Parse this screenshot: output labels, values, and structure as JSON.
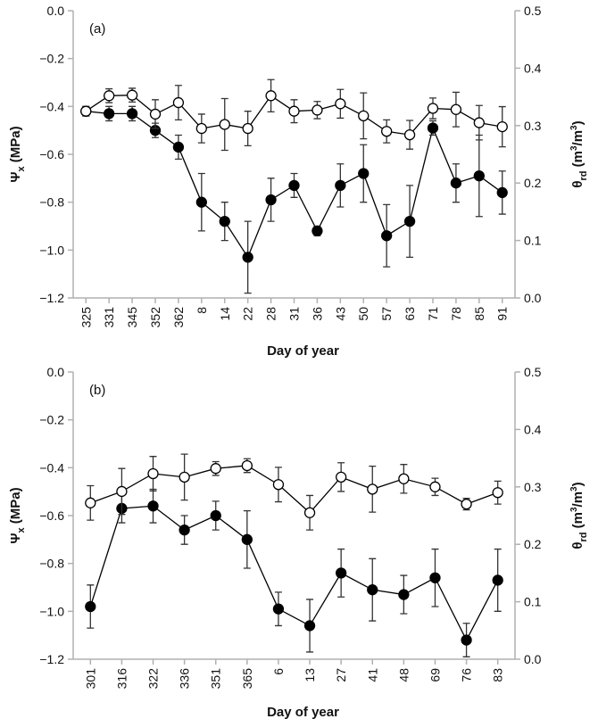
{
  "colors": {
    "axis": "#b0b0b0",
    "tick_label": "#111111",
    "series_line": "#000000",
    "filled": "#000000",
    "open": "#ffffff",
    "errorbar": "#333333"
  },
  "chart_data": [
    {
      "type": "line",
      "panel_label": "(a)",
      "xlabel": "Day of year",
      "ylabel_left": "Ψx (MPa)",
      "ylabel_right": "θrd (m3/m3)",
      "categories": [
        "325",
        "331",
        "345",
        "352",
        "362",
        "8",
        "14",
        "22",
        "28",
        "31",
        "36",
        "43",
        "50",
        "57",
        "63",
        "71",
        "78",
        "85",
        "91"
      ],
      "ylim_left": [
        -1.2,
        0.0
      ],
      "yticks_left": [
        "0.0",
        "-0.2",
        "-0.4",
        "-0.6",
        "-0.8",
        "-1.0",
        "-1.2"
      ],
      "ylim_right": [
        0.0,
        0.5
      ],
      "yticks_right": [
        "0.5",
        "0.4",
        "0.3",
        "0.2",
        "0.1",
        "0.0"
      ],
      "series": [
        {
          "marker": "filled",
          "axis": "left",
          "values": [
            -0.42,
            -0.43,
            -0.43,
            -0.5,
            -0.57,
            -0.8,
            -0.88,
            -1.03,
            -0.79,
            -0.73,
            -0.92,
            -0.73,
            -0.68,
            -0.94,
            -0.88,
            -0.49,
            -0.72,
            -0.69,
            -0.76
          ],
          "errors": [
            0.02,
            0.03,
            0.03,
            0.03,
            0.05,
            0.12,
            0.08,
            0.15,
            0.09,
            0.05,
            0.02,
            0.09,
            0.12,
            0.13,
            0.15,
            0.03,
            0.08,
            0.17,
            0.09
          ]
        },
        {
          "marker": "open",
          "axis": "right",
          "values": [
            0.325,
            0.352,
            0.353,
            0.32,
            0.34,
            0.295,
            0.302,
            0.295,
            0.352,
            0.325,
            0.327,
            0.338,
            0.317,
            0.29,
            0.284,
            0.33,
            0.328,
            0.305,
            0.298
          ],
          "errors": [
            0.008,
            0.012,
            0.012,
            0.025,
            0.03,
            0.025,
            0.045,
            0.03,
            0.028,
            0.02,
            0.015,
            0.025,
            0.04,
            0.02,
            0.025,
            0.018,
            0.03,
            0.03,
            0.035
          ]
        }
      ]
    },
    {
      "type": "line",
      "panel_label": "(b)",
      "xlabel": "Day of year",
      "ylabel_left": "Ψx (MPa)",
      "ylabel_right": "θrd (m3/m3)",
      "categories": [
        "301",
        "316",
        "322",
        "336",
        "351",
        "365",
        "6",
        "13",
        "27",
        "41",
        "48",
        "69",
        "76",
        "83"
      ],
      "ylim_left": [
        -1.2,
        0.0
      ],
      "yticks_left": [
        "0.0",
        "-0.2",
        "-0.4",
        "-0.6",
        "-0.8",
        "-1.0",
        "-1.2"
      ],
      "ylim_right": [
        0.0,
        0.5
      ],
      "yticks_right": [
        "0.5",
        "0.4",
        "0.3",
        "0.2",
        "0.1",
        "0.0"
      ],
      "series": [
        {
          "marker": "filled",
          "axis": "left",
          "values": [
            -0.98,
            -0.57,
            -0.56,
            -0.66,
            -0.6,
            -0.7,
            -0.99,
            -1.06,
            -0.84,
            -0.91,
            -0.93,
            -0.86,
            -1.12,
            -0.87
          ],
          "errors": [
            0.09,
            0.06,
            0.07,
            0.06,
            0.06,
            0.12,
            0.07,
            0.11,
            0.1,
            0.13,
            0.08,
            0.12,
            0.07,
            0.13
          ]
        },
        {
          "marker": "open",
          "axis": "right",
          "values": [
            0.272,
            0.292,
            0.323,
            0.317,
            0.332,
            0.337,
            0.304,
            0.255,
            0.317,
            0.296,
            0.314,
            0.3,
            0.27,
            0.29
          ],
          "errors": [
            0.03,
            0.04,
            0.03,
            0.04,
            0.012,
            0.012,
            0.03,
            0.03,
            0.025,
            0.04,
            0.025,
            0.015,
            0.01,
            0.02
          ]
        }
      ]
    }
  ]
}
